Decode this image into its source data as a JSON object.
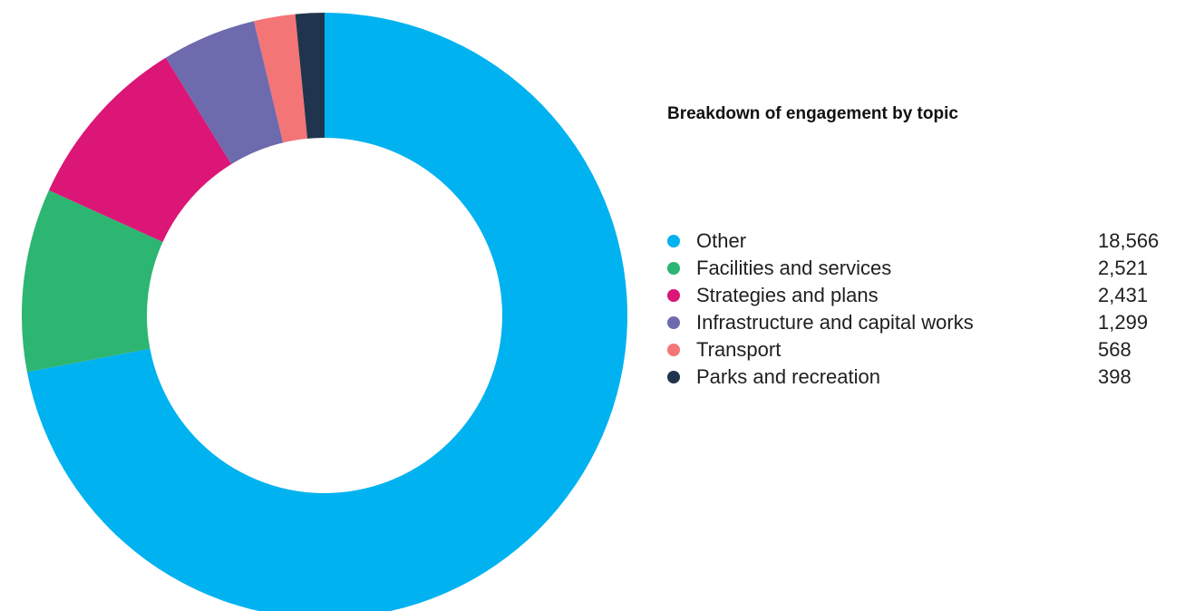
{
  "chart_data": {
    "type": "pie",
    "variant": "donut",
    "title": "Breakdown of engagement by topic",
    "legend_position": "right",
    "slices": [
      {
        "label": "Other",
        "value": 18566,
        "display_value": "18,566",
        "color": "#00b2ef"
      },
      {
        "label": "Facilities and services",
        "value": 2521,
        "display_value": "2,521",
        "color": "#2db572"
      },
      {
        "label": "Strategies and plans",
        "value": 2431,
        "display_value": "2,431",
        "color": "#db1676"
      },
      {
        "label": "Infrastructure and capital works",
        "value": 1299,
        "display_value": "1,299",
        "color": "#6e6aae"
      },
      {
        "label": "Transport",
        "value": 568,
        "display_value": "568",
        "color": "#f47576"
      },
      {
        "label": "Parks and recreation",
        "value": 398,
        "display_value": "398",
        "color": "#21344e"
      }
    ]
  }
}
